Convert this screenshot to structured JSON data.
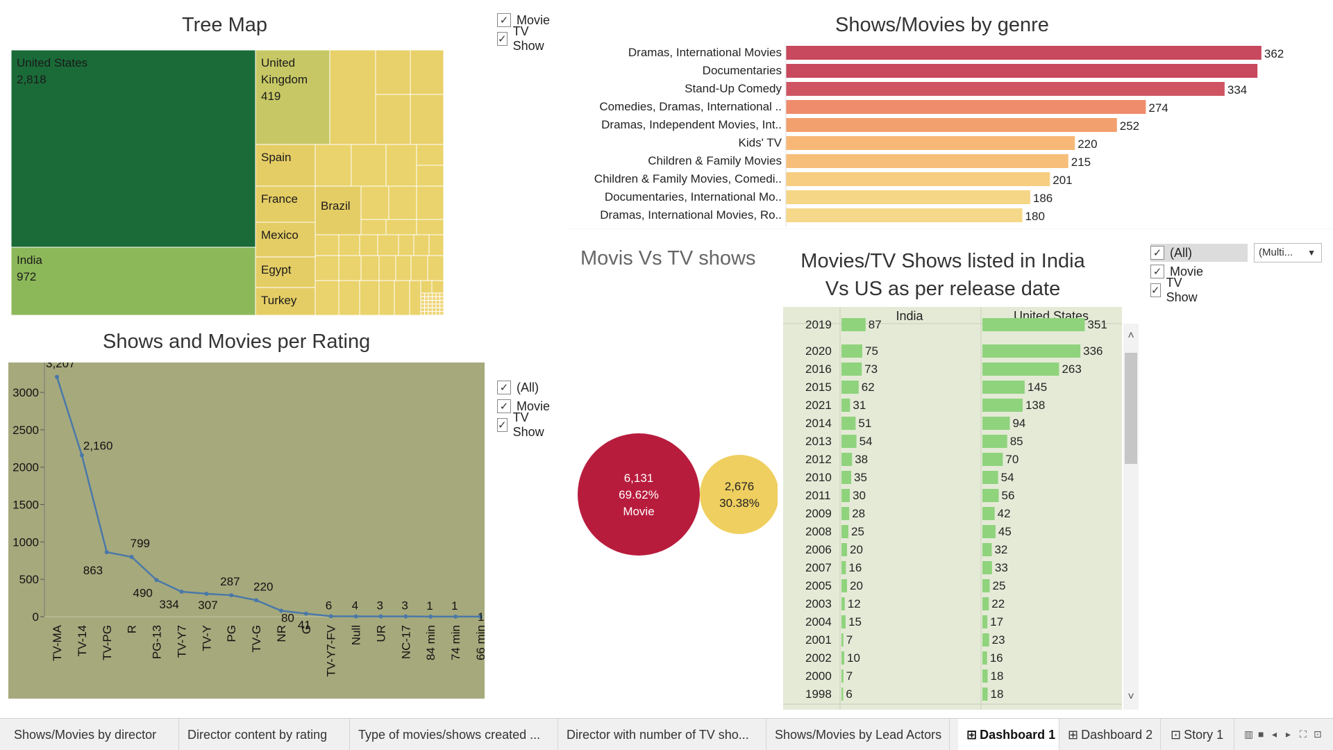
{
  "treemap": {
    "title": "Tree Map",
    "countries": [
      {
        "name": "United States",
        "value": "2,818",
        "color": "#1a6b38"
      },
      {
        "name": "India",
        "value": "972",
        "color": "#8db85a"
      },
      {
        "name": "United Kingdom",
        "value": "419",
        "color": "#c7c865"
      },
      {
        "name": "Spain",
        "value": "",
        "color": "#e5cd65"
      },
      {
        "name": "France",
        "value": "",
        "color": "#e5cd65"
      },
      {
        "name": "Mexico",
        "value": "",
        "color": "#e5cd65"
      },
      {
        "name": "Egypt",
        "value": "",
        "color": "#e5cd65"
      },
      {
        "name": "Turkey",
        "value": "",
        "color": "#e5cd65"
      },
      {
        "name": "Brazil",
        "value": "",
        "color": "#e5cd65"
      }
    ]
  },
  "filters": {
    "treemap": [
      "Movie",
      "TV Show"
    ],
    "rating": [
      "(All)",
      "Movie",
      "TV Show"
    ],
    "india_us": [
      "(All)",
      "Movie",
      "TV Show"
    ],
    "dropdown_value": "(Multi...",
    "dropdown_arrow": "▼",
    "check_glyph": "✓"
  },
  "genre_chart": {
    "title": "Shows/Movies by genre",
    "chart_data": {
      "type": "bar",
      "categories": [
        "Dramas, International Movies",
        "Documentaries",
        "Stand-Up Comedy",
        "Comedies, Dramas, International ..",
        "Dramas, Independent Movies, Int..",
        "Kids' TV",
        "Children & Family Movies",
        "Children & Family Movies, Comedi..",
        "Documentaries, International Mo..",
        "Dramas, International Movies, Ro.."
      ],
      "values": [
        362,
        359,
        334,
        274,
        252,
        220,
        215,
        201,
        186,
        180
      ],
      "value_labels": [
        "362",
        "",
        "334",
        "274",
        "252",
        "220",
        "215",
        "201",
        "186",
        "180"
      ],
      "colors": [
        "#c8485e",
        "#c8485e",
        "#cf5563",
        "#ee8c6c",
        "#f2a06e",
        "#f7b877",
        "#f7be7a",
        "#f7cd82",
        "#f5d686",
        "#f5d889"
      ]
    }
  },
  "rating_chart": {
    "title": "Shows and Movies per Rating",
    "chart_data": {
      "type": "line",
      "categories": [
        "TV-MA",
        "TV-14",
        "TV-PG",
        "R",
        "PG-13",
        "TV-Y7",
        "TV-Y",
        "PG",
        "TV-G",
        "NR",
        "G",
        "TV-Y7-FV",
        "Null",
        "UR",
        "NC-17",
        "84 min",
        "74 min",
        "66 min"
      ],
      "values": [
        3207,
        2160,
        863,
        799,
        490,
        334,
        307,
        287,
        220,
        80,
        41,
        6,
        4,
        3,
        3,
        1,
        1,
        1
      ],
      "labels": [
        "3,207",
        "2,160",
        "863",
        "799",
        "490",
        "334",
        "307",
        "287",
        "220",
        "80",
        "41",
        "6",
        "4",
        "3",
        "3",
        "1",
        "1",
        "1"
      ],
      "y_ticks": [
        "0",
        "500",
        "1000",
        "1500",
        "2000",
        "2500",
        "3000"
      ],
      "ylim": [
        0,
        3400
      ],
      "bg_color": "#a6a97c",
      "line_color": "#4a78a8"
    }
  },
  "bubble_chart": {
    "title": "Movis Vs TV shows",
    "chart_data": {
      "type": "bubble",
      "items": [
        {
          "count": "6,131",
          "pct": "69.62%",
          "label": "Movie",
          "color": "#b81c3d"
        },
        {
          "count": "2,676",
          "pct": "30.38%",
          "label": "",
          "color": "#efcf5f"
        }
      ]
    }
  },
  "india_us": {
    "title_line1": "Movies/TV Shows listed in India",
    "title_line2": "Vs US as per release date",
    "columns": [
      "India",
      "United States"
    ],
    "chart_data": {
      "type": "bar",
      "years": [
        "2019",
        "2020",
        "2016",
        "2015",
        "2021",
        "2014",
        "2013",
        "2012",
        "2010",
        "2011",
        "2009",
        "2008",
        "2006",
        "2007",
        "2005",
        "2003",
        "2004",
        "2001",
        "2002",
        "2000",
        "1998"
      ],
      "india": [
        87,
        75,
        73,
        62,
        31,
        51,
        54,
        38,
        35,
        30,
        28,
        25,
        20,
        16,
        20,
        12,
        15,
        7,
        10,
        7,
        6
      ],
      "us": [
        351,
        336,
        263,
        145,
        138,
        94,
        85,
        70,
        54,
        56,
        42,
        45,
        32,
        33,
        25,
        22,
        17,
        23,
        16,
        18,
        18
      ],
      "bar_color": "#8fd37d",
      "bg_color": "#e5ead7"
    },
    "scroll_up": "˄",
    "scroll_down": "˅"
  },
  "tabs": [
    {
      "label": "Shows/Movies by director",
      "icon": "",
      "active": false
    },
    {
      "label": "Director  content by rating",
      "icon": "",
      "active": false
    },
    {
      "label": "Type of movies/shows created ...",
      "icon": "",
      "active": false
    },
    {
      "label": "Director with number of TV sho...",
      "icon": "",
      "active": false
    },
    {
      "label": "Shows/Movies by Lead Actors",
      "icon": "",
      "active": false
    },
    {
      "label": "Dashboard 1",
      "icon": "⊞",
      "active": true
    },
    {
      "label": "Dashboard 2",
      "icon": "⊞",
      "active": false
    },
    {
      "label": "Story 1",
      "icon": "⊡",
      "active": false
    }
  ],
  "tab_controls": [
    "▥",
    "■",
    "◂",
    "▸",
    "⛶",
    "⊡"
  ]
}
